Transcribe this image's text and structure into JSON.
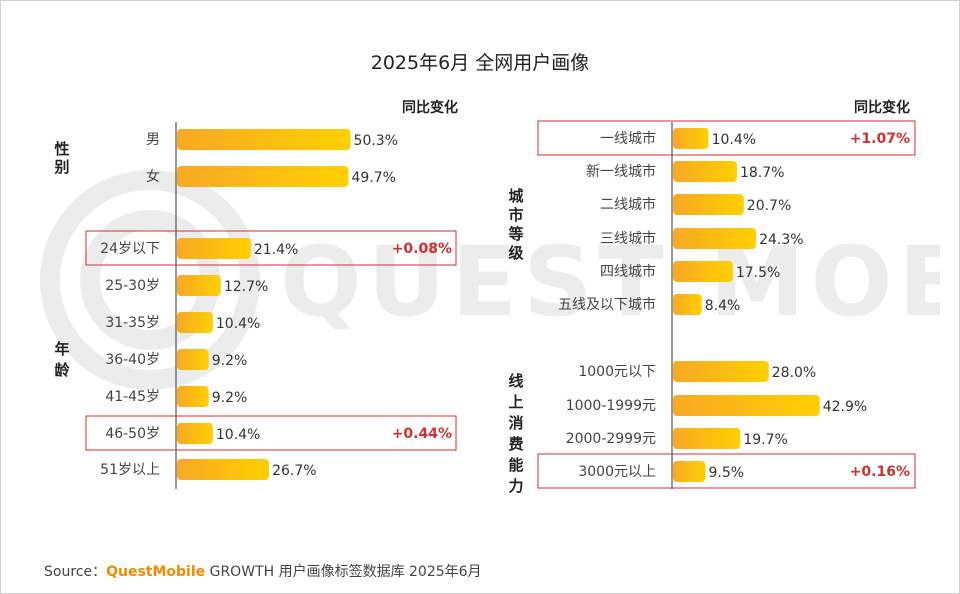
{
  "title": "2025年6月 全网用户画像",
  "footer": {
    "prefix": "Source：",
    "brand": "QuestMobile",
    "rest": " GROWTH 用户画像标签数据库 2025年6月"
  },
  "watermark": "QUEST MOBILE",
  "colors": {
    "bar_start": "#f9a825",
    "bar_end": "#ffd000",
    "highlight": "#d32f2f",
    "axis": "#333333"
  },
  "chart_data": [
    {
      "type": "bar",
      "orientation": "horizontal",
      "change_header": "同比变化",
      "groups": [
        {
          "name": "性别",
          "categories": [
            "男",
            "女"
          ],
          "values": [
            50.3,
            49.7
          ],
          "labels": [
            "50.3%",
            "49.7%"
          ],
          "changes": [
            "",
            ""
          ]
        },
        {
          "name": "年龄",
          "categories": [
            "24岁以下",
            "25-30岁",
            "31-35岁",
            "36-40岁",
            "41-45岁",
            "46-50岁",
            "51岁以上"
          ],
          "values": [
            21.4,
            12.7,
            10.4,
            9.2,
            9.2,
            10.4,
            26.7
          ],
          "labels": [
            "21.4%",
            "12.7%",
            "10.4%",
            "9.2%",
            "9.2%",
            "10.4%",
            "26.7%"
          ],
          "changes": [
            "+0.08%",
            "",
            "",
            "",
            "",
            "+0.44%",
            ""
          ]
        }
      ]
    },
    {
      "type": "bar",
      "orientation": "horizontal",
      "change_header": "同比变化",
      "groups": [
        {
          "name": "城市等级",
          "categories": [
            "一线城市",
            "新一线城市",
            "二线城市",
            "三线城市",
            "四线城市",
            "五线及以下城市"
          ],
          "values": [
            10.4,
            18.7,
            20.7,
            24.3,
            17.5,
            8.4
          ],
          "labels": [
            "10.4%",
            "18.7%",
            "20.7%",
            "24.3%",
            "17.5%",
            "8.4%"
          ],
          "changes": [
            "+1.07%",
            "",
            "",
            "",
            "",
            ""
          ]
        },
        {
          "name": "线上消费能力",
          "categories": [
            "1000元以下",
            "1000-1999元",
            "2000-2999元",
            "3000元以上"
          ],
          "values": [
            28.0,
            42.9,
            19.7,
            9.5
          ],
          "labels": [
            "28.0%",
            "42.9%",
            "19.7%",
            "9.5%"
          ],
          "changes": [
            "",
            "",
            "",
            "+0.16%"
          ]
        }
      ]
    }
  ]
}
